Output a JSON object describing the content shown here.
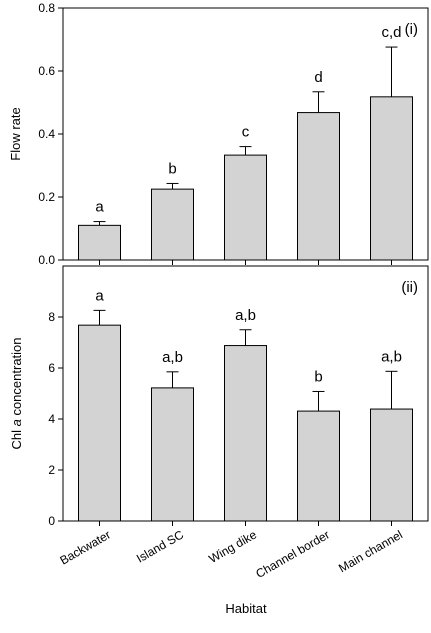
{
  "chart_data": [
    {
      "type": "bar",
      "panel_label": "(i)",
      "ylabel": "Flow rate",
      "ylim": [
        0,
        0.8
      ],
      "yticks": [
        "0.0",
        "0.2",
        "0.4",
        "0.6",
        "0.8"
      ],
      "categories": [
        "Backwater",
        "Island SC",
        "Wing dike",
        "Channel border",
        "Main channel"
      ],
      "values": [
        0.11,
        0.225,
        0.333,
        0.468,
        0.518
      ],
      "errors": [
        0.012,
        0.018,
        0.027,
        0.066,
        0.158
      ],
      "significance": [
        "a",
        "b",
        "c",
        "d",
        "c,d"
      ],
      "bar_color": "#d3d3d3"
    },
    {
      "type": "bar",
      "panel_label": "(ii)",
      "ylabel_prefix": "Chl ",
      "ylabel_italic": "a",
      "ylabel_suffix": " concentration",
      "ylim": [
        0,
        10
      ],
      "yticks": [
        "0",
        "2",
        "4",
        "6",
        "8"
      ],
      "categories": [
        "Backwater",
        "Island SC",
        "Wing dike",
        "Channel border",
        "Main channel"
      ],
      "values": [
        7.68,
        5.22,
        6.88,
        4.31,
        4.39
      ],
      "errors": [
        0.58,
        0.63,
        0.62,
        0.77,
        1.48
      ],
      "significance": [
        "a",
        "a,b",
        "a,b",
        "b",
        "a,b"
      ],
      "bar_color": "#d3d3d3"
    }
  ],
  "xlabel": "Habitat"
}
